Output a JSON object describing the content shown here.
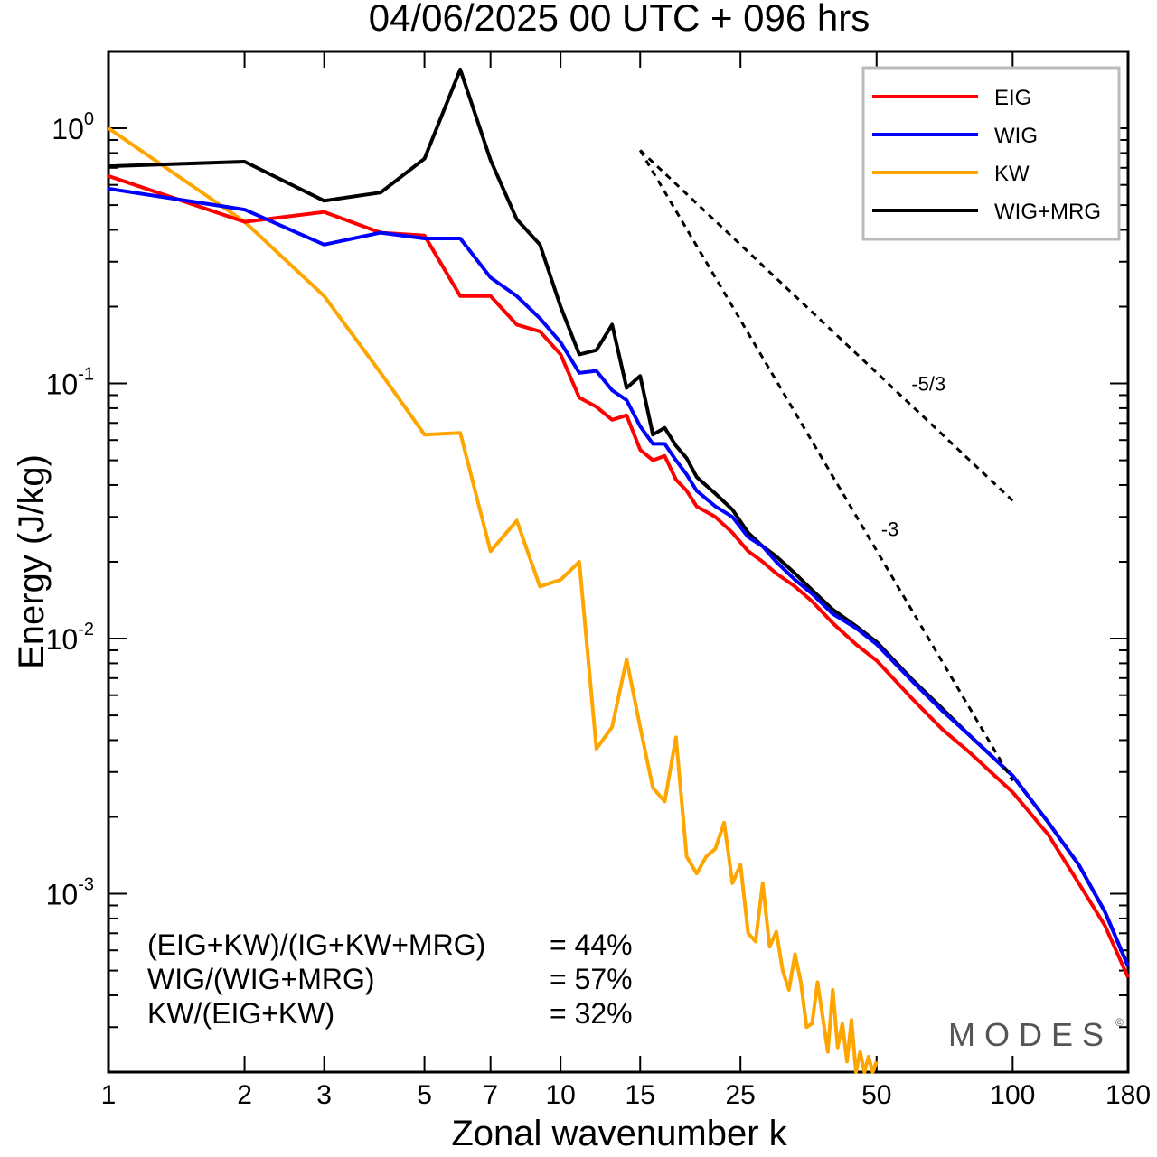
{
  "chart_data": {
    "type": "line",
    "title": "04/06/2025  00 UTC  + 096 hrs",
    "xlabel": "Zonal wavenumber k",
    "ylabel": "Energy (J/kg)",
    "xscale": "log",
    "yscale": "log",
    "xlim": [
      1,
      180
    ],
    "ylim": [
      0.0002,
      2.0
    ],
    "xticks": [
      1,
      2,
      3,
      5,
      7,
      10,
      15,
      25,
      50,
      100,
      180
    ],
    "xtick_labels": [
      "1",
      "2",
      "3",
      "5",
      "7",
      "10",
      "15",
      "25",
      "50",
      "100",
      "180"
    ],
    "yticks": [
      {
        "value": 1,
        "base": "10",
        "exp": "0"
      },
      {
        "value": 0.1,
        "base": "10",
        "exp": "-1"
      },
      {
        "value": 0.01,
        "base": "10",
        "exp": "-2"
      },
      {
        "value": 0.001,
        "base": "10",
        "exp": "-3"
      }
    ],
    "grid": false,
    "legend_position": "top-right",
    "series": [
      {
        "name": "EIG",
        "color": "#ff0000",
        "points": [
          [
            1,
            0.65
          ],
          [
            2,
            0.43
          ],
          [
            3,
            0.47
          ],
          [
            4,
            0.39
          ],
          [
            5,
            0.38
          ],
          [
            6,
            0.22
          ],
          [
            7,
            0.22
          ],
          [
            8,
            0.17
          ],
          [
            9,
            0.16
          ],
          [
            10,
            0.13
          ],
          [
            11,
            0.088
          ],
          [
            12,
            0.081
          ],
          [
            13,
            0.072
          ],
          [
            14,
            0.075
          ],
          [
            15,
            0.055
          ],
          [
            16,
            0.05
          ],
          [
            17,
            0.052
          ],
          [
            18,
            0.042
          ],
          [
            19,
            0.038
          ],
          [
            20,
            0.033
          ],
          [
            22,
            0.03
          ],
          [
            24,
            0.026
          ],
          [
            26,
            0.022
          ],
          [
            28,
            0.02
          ],
          [
            30,
            0.018
          ],
          [
            33,
            0.016
          ],
          [
            36,
            0.014
          ],
          [
            40,
            0.0115
          ],
          [
            45,
            0.0095
          ],
          [
            50,
            0.0082
          ],
          [
            60,
            0.0058
          ],
          [
            70,
            0.0044
          ],
          [
            80,
            0.0036
          ],
          [
            100,
            0.0025
          ],
          [
            120,
            0.0017
          ],
          [
            140,
            0.0011
          ],
          [
            160,
            0.00075
          ],
          [
            180,
            0.00047
          ]
        ]
      },
      {
        "name": "WIG",
        "color": "#0000ff",
        "points": [
          [
            1,
            0.58
          ],
          [
            2,
            0.48
          ],
          [
            3,
            0.35
          ],
          [
            4,
            0.39
          ],
          [
            5,
            0.37
          ],
          [
            6,
            0.37
          ],
          [
            7,
            0.26
          ],
          [
            8,
            0.22
          ],
          [
            9,
            0.18
          ],
          [
            10,
            0.145
          ],
          [
            11,
            0.11
          ],
          [
            12,
            0.112
          ],
          [
            13,
            0.094
          ],
          [
            14,
            0.086
          ],
          [
            15,
            0.068
          ],
          [
            16,
            0.058
          ],
          [
            17,
            0.058
          ],
          [
            18,
            0.05
          ],
          [
            19,
            0.044
          ],
          [
            20,
            0.038
          ],
          [
            22,
            0.033
          ],
          [
            24,
            0.03
          ],
          [
            26,
            0.025
          ],
          [
            28,
            0.023
          ],
          [
            30,
            0.02
          ],
          [
            33,
            0.017
          ],
          [
            36,
            0.015
          ],
          [
            40,
            0.0125
          ],
          [
            45,
            0.011
          ],
          [
            50,
            0.0095
          ],
          [
            60,
            0.0068
          ],
          [
            70,
            0.0052
          ],
          [
            80,
            0.0042
          ],
          [
            100,
            0.0029
          ],
          [
            120,
            0.0019
          ],
          [
            140,
            0.0013
          ],
          [
            160,
            0.00085
          ],
          [
            180,
            0.00052
          ]
        ]
      },
      {
        "name": "KW",
        "color": "#ffa500",
        "points": [
          [
            1,
            1.0
          ],
          [
            2,
            0.43
          ],
          [
            3,
            0.22
          ],
          [
            4,
            0.11
          ],
          [
            5,
            0.063
          ],
          [
            6,
            0.064
          ],
          [
            7,
            0.022
          ],
          [
            8,
            0.029
          ],
          [
            9,
            0.016
          ],
          [
            10,
            0.017
          ],
          [
            11,
            0.02
          ],
          [
            12,
            0.0037
          ],
          [
            13,
            0.0045
          ],
          [
            14,
            0.0083
          ],
          [
            15,
            0.0045
          ],
          [
            16,
            0.0026
          ],
          [
            17,
            0.0023
          ],
          [
            18,
            0.0041
          ],
          [
            19,
            0.0014
          ],
          [
            20,
            0.0012
          ],
          [
            21,
            0.0014
          ],
          [
            22,
            0.0015
          ],
          [
            23,
            0.0019
          ],
          [
            24,
            0.0011
          ],
          [
            25,
            0.0013
          ],
          [
            26,
            0.0007
          ],
          [
            27,
            0.00065
          ],
          [
            28,
            0.0011
          ],
          [
            29,
            0.00062
          ],
          [
            30,
            0.00071
          ],
          [
            31,
            0.0005
          ],
          [
            32,
            0.00042
          ],
          [
            33,
            0.00058
          ],
          [
            34,
            0.00045
          ],
          [
            35,
            0.0003
          ],
          [
            36,
            0.00031
          ],
          [
            37,
            0.00045
          ],
          [
            38,
            0.00033
          ],
          [
            39,
            0.00024
          ],
          [
            40,
            0.00042
          ],
          [
            41,
            0.00025
          ],
          [
            42,
            0.00031
          ],
          [
            43,
            0.00022
          ],
          [
            44,
            0.00032
          ],
          [
            45,
            0.0002
          ],
          [
            46,
            0.00024
          ],
          [
            47,
            0.0002
          ],
          [
            48,
            0.00023
          ],
          [
            49,
            0.0002
          ],
          [
            50,
            0.00022
          ]
        ]
      },
      {
        "name": "WIG+MRG",
        "color": "#000000",
        "points": [
          [
            1,
            0.71
          ],
          [
            2,
            0.74
          ],
          [
            3,
            0.52
          ],
          [
            4,
            0.56
          ],
          [
            5,
            0.76
          ],
          [
            6,
            1.7
          ],
          [
            7,
            0.75
          ],
          [
            8,
            0.44
          ],
          [
            9,
            0.35
          ],
          [
            10,
            0.2
          ],
          [
            11,
            0.13
          ],
          [
            12,
            0.135
          ],
          [
            13,
            0.17
          ],
          [
            14,
            0.096
          ],
          [
            15,
            0.107
          ],
          [
            16,
            0.063
          ],
          [
            17,
            0.067
          ],
          [
            18,
            0.057
          ],
          [
            19,
            0.051
          ],
          [
            20,
            0.043
          ],
          [
            22,
            0.037
          ],
          [
            24,
            0.032
          ],
          [
            26,
            0.026
          ],
          [
            28,
            0.023
          ],
          [
            30,
            0.021
          ],
          [
            33,
            0.018
          ],
          [
            36,
            0.0155
          ],
          [
            40,
            0.013
          ],
          [
            45,
            0.0112
          ],
          [
            50,
            0.0097
          ],
          [
            60,
            0.0069
          ],
          [
            70,
            0.0053
          ],
          [
            80,
            0.0042
          ],
          [
            100,
            0.0029
          ],
          [
            120,
            0.0019
          ],
          [
            140,
            0.0013
          ],
          [
            160,
            0.00085
          ],
          [
            180,
            0.00052
          ]
        ]
      }
    ],
    "reference_lines": [
      {
        "label": "-5/3",
        "slope": -1.6667,
        "k_start": 15,
        "k_end": 100,
        "e_start": 0.82
      },
      {
        "label": "-3",
        "slope": -3,
        "k_start": 15,
        "k_end": 100,
        "e_start": 0.82
      }
    ]
  },
  "stats": [
    {
      "label": "(EIG+KW)/(IG+KW+MRG)",
      "value": "= 44%"
    },
    {
      "label": "WIG/(WIG+MRG)",
      "value": "= 57%"
    },
    {
      "label": "KW/(EIG+KW)",
      "value": "= 32%"
    }
  ],
  "watermark": {
    "text": "MODES",
    "symbol": "©"
  }
}
